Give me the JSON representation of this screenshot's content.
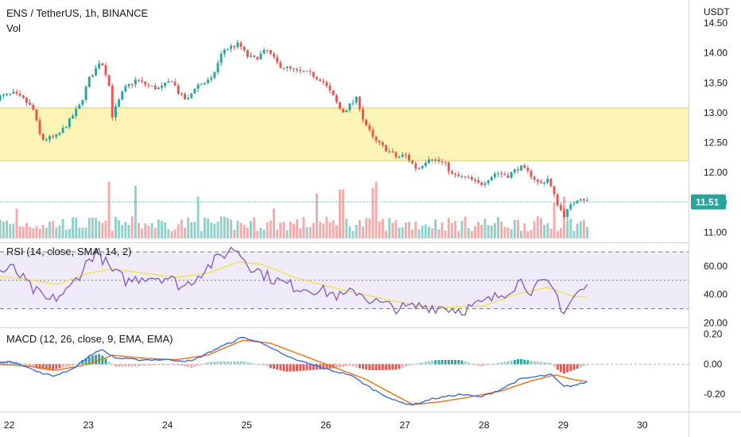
{
  "header": {
    "title": "ENS / TetherUS, 1h, BINANCE",
    "vol_label": "Vol",
    "currency": "USDT"
  },
  "price_axis": {
    "ticks": [
      "14.50",
      "14.00",
      "13.50",
      "13.00",
      "12.50",
      "12.00",
      "11.50",
      "11.00"
    ],
    "last_price": "11.51"
  },
  "rsi_panel": {
    "label": "RSI (14, close, SMA, 14, 2)",
    "ticks": [
      "60.00",
      "40.00",
      "20.00"
    ]
  },
  "macd_panel": {
    "label": "MACD (12, 26, close, 9, EMA, EMA)",
    "ticks": [
      "0.20",
      "0.00",
      "-0.20"
    ]
  },
  "time_axis": {
    "ticks": [
      "22",
      "23",
      "24",
      "25",
      "26",
      "27",
      "28",
      "29",
      "30"
    ]
  },
  "colors": {
    "up": "#26a69a",
    "down": "#ef5350",
    "vol_up": "#8fd1c9",
    "vol_down": "#f6a9a8",
    "rsi_line": "#7e57c2",
    "rsi_ma": "#f2e03f",
    "rsi_band": "#efebf8",
    "macd_line": "#2962ff",
    "signal_line": "#ff6d00",
    "zone": "#fcf4b4",
    "zone_border": "#e6cc57",
    "last_price": "#26a69a"
  },
  "chart_data": [
    {
      "type": "candlestick",
      "title": "ENS / TetherUS, 1h, BINANCE",
      "x_label": "",
      "y_label": "USDT",
      "x_range": [
        21.8,
        30.5
      ],
      "y_range": [
        10.9,
        14.62
      ],
      "highlight_zone": [
        12.2,
        13.08
      ],
      "last_price": 11.51,
      "close_anchors": [
        [
          21.85,
          13.25
        ],
        [
          22.05,
          13.32
        ],
        [
          22.2,
          13.2
        ],
        [
          22.3,
          13.05
        ],
        [
          22.4,
          12.55
        ],
        [
          22.6,
          12.6
        ],
        [
          22.75,
          12.85
        ],
        [
          22.9,
          13.15
        ],
        [
          23.0,
          13.55
        ],
        [
          23.1,
          13.75
        ],
        [
          23.15,
          13.9
        ],
        [
          23.25,
          13.55
        ],
        [
          23.3,
          12.95
        ],
        [
          23.45,
          13.4
        ],
        [
          23.6,
          13.55
        ],
        [
          23.75,
          13.45
        ],
        [
          23.9,
          13.4
        ],
        [
          24.05,
          13.55
        ],
        [
          24.15,
          13.3
        ],
        [
          24.25,
          13.2
        ],
        [
          24.35,
          13.45
        ],
        [
          24.55,
          13.55
        ],
        [
          24.7,
          14.05
        ],
        [
          24.8,
          14.1
        ],
        [
          24.9,
          14.15
        ],
        [
          25.0,
          13.95
        ],
        [
          25.1,
          13.9
        ],
        [
          25.25,
          14.05
        ],
        [
          25.4,
          13.8
        ],
        [
          25.6,
          13.7
        ],
        [
          25.8,
          13.65
        ],
        [
          25.95,
          13.55
        ],
        [
          26.1,
          13.25
        ],
        [
          26.2,
          13.0
        ],
        [
          26.4,
          13.25
        ],
        [
          26.45,
          12.95
        ],
        [
          26.6,
          12.55
        ],
        [
          26.8,
          12.35
        ],
        [
          26.9,
          12.25
        ],
        [
          27.0,
          12.3
        ],
        [
          27.15,
          12.05
        ],
        [
          27.3,
          12.25
        ],
        [
          27.5,
          12.15
        ],
        [
          27.6,
          11.95
        ],
        [
          27.8,
          11.9
        ],
        [
          27.95,
          11.8
        ],
        [
          28.15,
          12.0
        ],
        [
          28.3,
          11.95
        ],
        [
          28.45,
          12.1
        ],
        [
          28.6,
          11.95
        ],
        [
          28.7,
          11.8
        ],
        [
          28.8,
          11.9
        ],
        [
          28.9,
          11.55
        ],
        [
          29.0,
          11.28
        ],
        [
          29.1,
          11.45
        ],
        [
          29.2,
          11.6
        ],
        [
          29.3,
          11.52
        ]
      ],
      "volume_spikes": [
        [
          23.25,
          0.95
        ],
        [
          23.6,
          0.88
        ],
        [
          24.4,
          0.7
        ],
        [
          25.9,
          0.75
        ],
        [
          26.2,
          0.82
        ],
        [
          26.6,
          0.85
        ],
        [
          26.65,
          0.95
        ],
        [
          28.9,
          0.6
        ],
        [
          29.0,
          0.7
        ],
        [
          22.1,
          0.5
        ],
        [
          25.35,
          0.5
        ]
      ]
    },
    {
      "type": "line",
      "name": "RSI",
      "label": "RSI (14, close, SMA, 14, 2)",
      "y_range": [
        18,
        75
      ],
      "levels": [
        70,
        50,
        30
      ],
      "rsi_anchors": [
        [
          21.8,
          55
        ],
        [
          22.05,
          58
        ],
        [
          22.3,
          43
        ],
        [
          22.5,
          35
        ],
        [
          22.75,
          43
        ],
        [
          22.95,
          60
        ],
        [
          23.1,
          71
        ],
        [
          23.3,
          56
        ],
        [
          23.5,
          49
        ],
        [
          23.7,
          53
        ],
        [
          24.0,
          52
        ],
        [
          24.2,
          45
        ],
        [
          24.45,
          57
        ],
        [
          24.7,
          68
        ],
        [
          24.85,
          73
        ],
        [
          25.05,
          60
        ],
        [
          25.25,
          53
        ],
        [
          25.45,
          48
        ],
        [
          25.65,
          45
        ],
        [
          25.85,
          44
        ],
        [
          26.05,
          41
        ],
        [
          26.2,
          38
        ],
        [
          26.4,
          43
        ],
        [
          26.5,
          38
        ],
        [
          26.7,
          33
        ],
        [
          26.95,
          30
        ],
        [
          27.2,
          32
        ],
        [
          27.5,
          31
        ],
        [
          27.7,
          29
        ],
        [
          27.95,
          33
        ],
        [
          28.15,
          38
        ],
        [
          28.35,
          45
        ],
        [
          28.45,
          50
        ],
        [
          28.6,
          43
        ],
        [
          28.75,
          48
        ],
        [
          28.9,
          42
        ],
        [
          29.0,
          27
        ],
        [
          29.15,
          40
        ],
        [
          29.3,
          45
        ]
      ],
      "rsi_ma_anchors": [
        [
          21.8,
          53
        ],
        [
          22.2,
          51
        ],
        [
          22.6,
          47
        ],
        [
          23.0,
          55
        ],
        [
          23.3,
          58
        ],
        [
          23.7,
          55
        ],
        [
          24.1,
          52
        ],
        [
          24.5,
          55
        ],
        [
          24.9,
          63
        ],
        [
          25.2,
          61
        ],
        [
          25.6,
          52
        ],
        [
          26.0,
          46
        ],
        [
          26.4,
          41
        ],
        [
          26.8,
          36
        ],
        [
          27.2,
          32
        ],
        [
          27.6,
          31
        ],
        [
          28.0,
          32
        ],
        [
          28.4,
          40
        ],
        [
          28.8,
          45
        ],
        [
          29.1,
          39
        ],
        [
          29.3,
          38
        ]
      ]
    },
    {
      "type": "line",
      "name": "MACD",
      "label": "MACD (12, 26, close, 9, EMA, EMA)",
      "y_range": [
        -0.3,
        0.23
      ],
      "macd_anchors": [
        [
          21.8,
          0.02
        ],
        [
          22.1,
          0.01
        ],
        [
          22.35,
          -0.05
        ],
        [
          22.55,
          -0.08
        ],
        [
          22.8,
          -0.03
        ],
        [
          23.0,
          0.05
        ],
        [
          23.15,
          0.1
        ],
        [
          23.35,
          0.04
        ],
        [
          23.6,
          0.03
        ],
        [
          24.0,
          0.03
        ],
        [
          24.3,
          0.02
        ],
        [
          24.6,
          0.1
        ],
        [
          24.95,
          0.18
        ],
        [
          25.25,
          0.13
        ],
        [
          25.5,
          0.05
        ],
        [
          25.8,
          0.0
        ],
        [
          26.05,
          -0.04
        ],
        [
          26.3,
          -0.07
        ],
        [
          26.6,
          -0.17
        ],
        [
          26.9,
          -0.25
        ],
        [
          27.1,
          -0.27
        ],
        [
          27.35,
          -0.23
        ],
        [
          27.7,
          -0.2
        ],
        [
          27.95,
          -0.22
        ],
        [
          28.2,
          -0.17
        ],
        [
          28.45,
          -0.1
        ],
        [
          28.7,
          -0.08
        ],
        [
          28.85,
          -0.07
        ],
        [
          29.0,
          -0.15
        ],
        [
          29.15,
          -0.14
        ],
        [
          29.35,
          -0.11
        ]
      ],
      "signal_anchors": [
        [
          21.8,
          0.0
        ],
        [
          22.2,
          -0.01
        ],
        [
          22.6,
          -0.04
        ],
        [
          23.0,
          0.0
        ],
        [
          23.3,
          0.06
        ],
        [
          23.7,
          0.04
        ],
        [
          24.1,
          0.03
        ],
        [
          24.5,
          0.06
        ],
        [
          24.95,
          0.16
        ],
        [
          25.3,
          0.14
        ],
        [
          25.7,
          0.06
        ],
        [
          26.1,
          -0.02
        ],
        [
          26.5,
          -0.1
        ],
        [
          26.85,
          -0.2
        ],
        [
          27.1,
          -0.27
        ],
        [
          27.45,
          -0.25
        ],
        [
          27.8,
          -0.22
        ],
        [
          28.2,
          -0.18
        ],
        [
          28.6,
          -0.11
        ],
        [
          28.9,
          -0.07
        ],
        [
          29.1,
          -0.1
        ],
        [
          29.35,
          -0.12
        ]
      ]
    }
  ]
}
